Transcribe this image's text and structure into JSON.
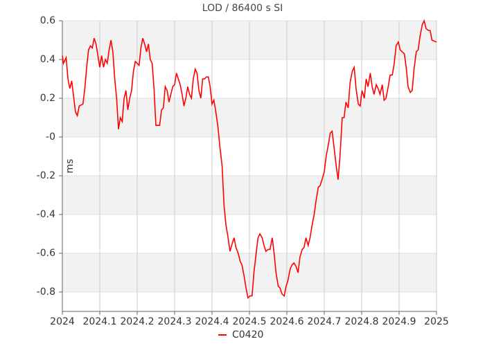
{
  "chart_data": {
    "type": "line",
    "title": "LOD / 86400 s SI",
    "ylabel": "ms",
    "x": [
      2024,
      2024.003,
      2024.01,
      2024.015,
      2024.02,
      2024.025,
      2024.035,
      2024.04,
      2024.045,
      2024.055,
      2024.06,
      2024.065,
      2024.07,
      2024.075,
      2024.08,
      2024.085,
      2024.09,
      2024.095,
      2024.1,
      2024.105,
      2024.11,
      2024.115,
      2024.12,
      2024.125,
      2024.13,
      2024.135,
      2024.14,
      2024.145,
      2024.15,
      2024.155,
      2024.16,
      2024.165,
      2024.17,
      2024.175,
      2024.18,
      2024.185,
      2024.19,
      2024.195,
      2024.2,
      2024.205,
      2024.21,
      2024.215,
      2024.22,
      2024.225,
      2024.23,
      2024.235,
      2024.24,
      2024.245,
      2024.25,
      2024.26,
      2024.265,
      2024.27,
      2024.275,
      2024.28,
      2024.285,
      2024.29,
      2024.295,
      2024.3,
      2024.305,
      2024.31,
      2024.315,
      2024.32,
      2024.325,
      2024.33,
      2024.335,
      2024.34,
      2024.345,
      2024.35,
      2024.355,
      2024.36,
      2024.365,
      2024.37,
      2024.375,
      2024.38,
      2024.385,
      2024.39,
      2024.395,
      2024.4,
      2024.405,
      2024.411,
      2024.416,
      2024.421,
      2024.427,
      2024.432,
      2024.437,
      2024.443,
      2024.448,
      2024.454,
      2024.459,
      2024.464,
      2024.47,
      2024.475,
      2024.48,
      2024.486,
      2024.491,
      2024.496,
      2024.502,
      2024.507,
      2024.512,
      2024.518,
      2024.523,
      2024.528,
      2024.534,
      2024.539,
      2024.544,
      2024.55,
      2024.555,
      2024.561,
      2024.566,
      2024.571,
      2024.577,
      2024.582,
      2024.587,
      2024.593,
      2024.598,
      2024.603,
      2024.609,
      2024.614,
      2024.619,
      2024.625,
      2024.63,
      2024.635,
      2024.641,
      2024.646,
      2024.651,
      2024.657,
      2024.662,
      2024.668,
      2024.673,
      2024.678,
      2024.684,
      2024.689,
      2024.694,
      2024.7,
      2024.705,
      2024.71,
      2024.716,
      2024.721,
      2024.726,
      2024.732,
      2024.737,
      2024.742,
      2024.748,
      2024.753,
      2024.758,
      2024.764,
      2024.769,
      2024.775,
      2024.78,
      2024.785,
      2024.791,
      2024.796,
      2024.801,
      2024.807,
      2024.812,
      2024.817,
      2024.823,
      2024.828,
      2024.833,
      2024.839,
      2024.844,
      2024.849,
      2024.855,
      2024.86,
      2024.865,
      2024.871,
      2024.876,
      2024.882,
      2024.887,
      2024.892,
      2024.898,
      2024.903,
      2024.908,
      2024.914,
      2024.919,
      2024.924,
      2024.93,
      2024.935,
      2024.94,
      2024.946,
      2024.951,
      2024.956,
      2024.962,
      2024.967,
      2024.972,
      2024.978,
      2024.983,
      2024.988,
      2025
    ],
    "series": [
      {
        "name": "C0420",
        "color": "#ff0000",
        "values": [
          0.42,
          0.38,
          0.41,
          0.3,
          0.25,
          0.29,
          0.13,
          0.11,
          0.16,
          0.17,
          0.25,
          0.36,
          0.45,
          0.47,
          0.46,
          0.51,
          0.48,
          0.42,
          0.36,
          0.42,
          0.36,
          0.4,
          0.38,
          0.45,
          0.5,
          0.44,
          0.3,
          0.2,
          0.04,
          0.1,
          0.08,
          0.2,
          0.24,
          0.14,
          0.2,
          0.24,
          0.34,
          0.39,
          0.38,
          0.37,
          0.46,
          0.51,
          0.48,
          0.44,
          0.48,
          0.4,
          0.38,
          0.25,
          0.06,
          0.06,
          0.14,
          0.15,
          0.26,
          0.24,
          0.18,
          0.22,
          0.26,
          0.27,
          0.33,
          0.3,
          0.27,
          0.22,
          0.16,
          0.2,
          0.26,
          0.22,
          0.2,
          0.3,
          0.35,
          0.33,
          0.24,
          0.2,
          0.3,
          0.3,
          0.31,
          0.31,
          0.26,
          0.17,
          0.19,
          0.12,
          0.05,
          -0.05,
          -0.15,
          -0.35,
          -0.45,
          -0.52,
          -0.59,
          -0.55,
          -0.52,
          -0.57,
          -0.6,
          -0.64,
          -0.66,
          -0.72,
          -0.78,
          -0.83,
          -0.82,
          -0.82,
          -0.7,
          -0.6,
          -0.52,
          -0.5,
          -0.52,
          -0.56,
          -0.59,
          -0.58,
          -0.58,
          -0.52,
          -0.6,
          -0.7,
          -0.77,
          -0.78,
          -0.81,
          -0.82,
          -0.77,
          -0.74,
          -0.68,
          -0.66,
          -0.65,
          -0.67,
          -0.7,
          -0.62,
          -0.58,
          -0.57,
          -0.52,
          -0.56,
          -0.52,
          -0.45,
          -0.4,
          -0.33,
          -0.26,
          -0.25,
          -0.22,
          -0.18,
          -0.1,
          -0.05,
          0.02,
          0.03,
          -0.05,
          -0.15,
          -0.22,
          -0.1,
          0.1,
          0.1,
          0.18,
          0.15,
          0.28,
          0.34,
          0.36,
          0.25,
          0.17,
          0.16,
          0.24,
          0.2,
          0.3,
          0.26,
          0.33,
          0.26,
          0.22,
          0.27,
          0.25,
          0.22,
          0.27,
          0.19,
          0.2,
          0.26,
          0.32,
          0.32,
          0.38,
          0.47,
          0.49,
          0.45,
          0.44,
          0.43,
          0.36,
          0.26,
          0.23,
          0.24,
          0.35,
          0.44,
          0.45,
          0.52,
          0.58,
          0.6,
          0.56,
          0.55,
          0.55,
          0.5,
          0.49
        ]
      }
    ],
    "xlim": [
      2024,
      2025
    ],
    "xticks": [
      2024,
      2024.1,
      2024.2,
      2024.3,
      2024.4,
      2024.5,
      2024.6,
      2024.7,
      2024.8,
      2024.9,
      2025
    ],
    "ylim": [
      -0.9,
      0.6
    ],
    "yticks": [
      0.6,
      0.4,
      0.2,
      {
        "value": 0,
        "label": "-0"
      },
      -0.2,
      -0.4,
      -0.6,
      -0.8
    ],
    "grid": true,
    "legend": "bottom"
  }
}
